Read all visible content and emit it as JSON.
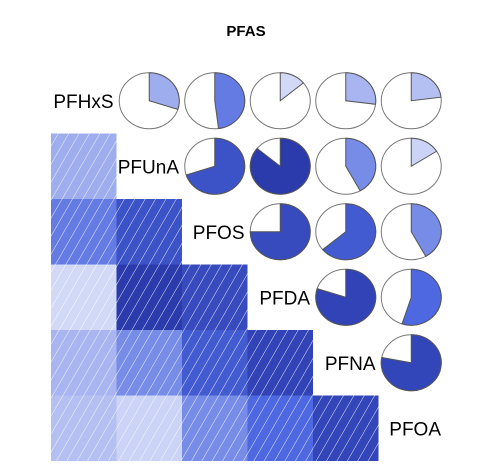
{
  "chart_data": {
    "type": "heatmap",
    "title": "PFAS",
    "variables": [
      "PFHxS",
      "PFUnA",
      "PFOS",
      "PFDA",
      "PFNA",
      "PFOA"
    ],
    "lower_panel": "shade",
    "upper_panel": "pie",
    "correlations": [
      [
        1.0,
        0.3,
        0.48,
        0.14,
        0.27,
        0.23
      ],
      [
        0.3,
        1.0,
        0.7,
        0.86,
        0.42,
        0.16
      ],
      [
        0.48,
        0.7,
        1.0,
        0.75,
        0.64,
        0.42
      ],
      [
        0.14,
        0.86,
        0.75,
        1.0,
        0.8,
        0.55
      ],
      [
        0.27,
        0.42,
        0.64,
        0.8,
        1.0,
        0.78
      ],
      [
        0.23,
        0.16,
        0.42,
        0.55,
        0.78,
        1.0
      ]
    ],
    "color_scale": {
      "low": "#ffffff",
      "mid": "#4d68e0",
      "high": "#1b2694"
    }
  }
}
